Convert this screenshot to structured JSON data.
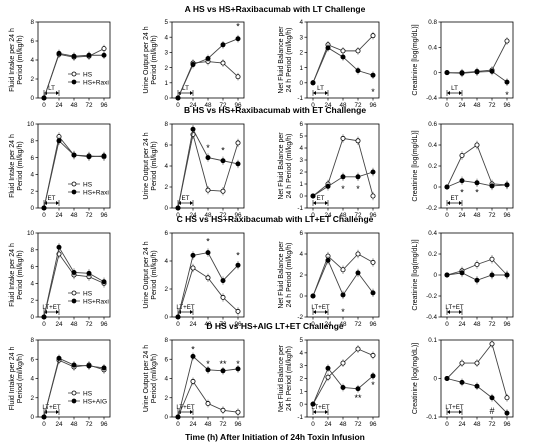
{
  "figure": {
    "xlabel": "Time (h) After Initiation of 24h Toxin Infusion",
    "x_ticks": [
      0,
      24,
      48,
      72,
      96
    ],
    "colors": {
      "hs": "#ffffff",
      "treated": "#000000",
      "line": "#444444"
    }
  },
  "chart_data": [
    {
      "row": "A",
      "title": "HS vs HS+Raxibacumab with LT Challenge",
      "toxin_label": "LT",
      "legend": [
        "HS",
        "HS+Raxi"
      ],
      "panels": [
        {
          "type": "line",
          "ylabel": [
            "Fluid Intake per 24 h",
            "Period (ml/kg/h)"
          ],
          "ylim": [
            0,
            8
          ],
          "yticks": [
            0,
            2,
            4,
            6,
            8
          ],
          "x": [
            0,
            24,
            48,
            72,
            96
          ],
          "series": [
            {
              "name": "HS",
              "values": [
                0,
                4.6,
                4.3,
                4.4,
                5.2
              ]
            },
            {
              "name": "HS+Raxi",
              "values": [
                0,
                4.7,
                4.4,
                4.5,
                4.5
              ]
            }
          ],
          "stars": []
        },
        {
          "type": "line",
          "ylabel": [
            "Urine Output per 24 h",
            "Period (ml/kg/h)"
          ],
          "ylim": [
            0,
            5
          ],
          "yticks": [
            0,
            1,
            2,
            3,
            4,
            5
          ],
          "x": [
            0,
            24,
            48,
            72,
            96
          ],
          "series": [
            {
              "name": "HS",
              "values": [
                0,
                2.3,
                2.4,
                2.3,
                1.4
              ]
            },
            {
              "name": "HS+Raxi",
              "values": [
                0,
                2.2,
                2.6,
                3.5,
                3.9
              ]
            }
          ],
          "stars": [
            {
              "x": 96,
              "y": 4.7,
              "t": "*"
            }
          ]
        },
        {
          "type": "line",
          "ylabel": [
            "Net Fluid Balance per",
            "24 h Period (ml/kg/h)"
          ],
          "ylim": [
            -1,
            4
          ],
          "yticks": [
            -1,
            0,
            1,
            2,
            3,
            4
          ],
          "x": [
            0,
            24,
            48,
            72,
            96
          ],
          "series": [
            {
              "name": "HS",
              "values": [
                0,
                2.5,
                2.1,
                2.1,
                3.1
              ]
            },
            {
              "name": "HS+Raxi",
              "values": [
                0,
                2.3,
                1.7,
                0.8,
                0.5
              ]
            }
          ],
          "stars": [
            {
              "x": 96,
              "y": -0.6,
              "t": "*"
            }
          ]
        },
        {
          "type": "line",
          "ylabel": [
            "Creatinine [log(mg/dL)]"
          ],
          "ylim": [
            -0.4,
            0.8
          ],
          "yticks": [
            -0.4,
            0,
            0.4,
            0.8
          ],
          "x": [
            0,
            24,
            48,
            72,
            96
          ],
          "series": [
            {
              "name": "HS",
              "values": [
                0,
                0,
                0.02,
                0.04,
                0.5
              ]
            },
            {
              "name": "HS+Raxi",
              "values": [
                0,
                -0.01,
                0.01,
                0.02,
                -0.15
              ]
            }
          ],
          "stars": [
            {
              "x": 96,
              "y": -0.35,
              "t": "*"
            }
          ]
        }
      ]
    },
    {
      "row": "B",
      "title": "HS vs HS+Raxibacumab with ET Challenge",
      "toxin_label": "ET",
      "legend": [
        "HS",
        "HS+Raxi"
      ],
      "panels": [
        {
          "type": "line",
          "ylabel": [
            "Fluid Intake per 24 h",
            "Period (ml/kg/h)"
          ],
          "ylim": [
            0,
            10
          ],
          "yticks": [
            0,
            2,
            4,
            6,
            8,
            10
          ],
          "x": [
            0,
            24,
            48,
            72,
            96
          ],
          "series": [
            {
              "name": "HS",
              "values": [
                0,
                8.5,
                6.3,
                6.2,
                6.1
              ]
            },
            {
              "name": "HS+Raxi",
              "values": [
                0,
                8.0,
                6.3,
                6.1,
                6.2
              ]
            }
          ],
          "stars": []
        },
        {
          "type": "line",
          "ylabel": [
            "Urine Output per 24 h",
            "Period (ml/kg/h)"
          ],
          "ylim": [
            0,
            8
          ],
          "yticks": [
            0,
            2,
            4,
            6,
            8
          ],
          "x": [
            0,
            24,
            48,
            72,
            96
          ],
          "series": [
            {
              "name": "HS",
              "values": [
                0,
                7.0,
                1.7,
                1.6,
                6.2
              ]
            },
            {
              "name": "HS+Raxi",
              "values": [
                0,
                7.5,
                4.8,
                4.5,
                4.2
              ]
            }
          ],
          "stars": [
            {
              "x": 48,
              "y": 5.7,
              "t": "*"
            },
            {
              "x": 72,
              "y": 5.5,
              "t": "*"
            }
          ]
        },
        {
          "type": "line",
          "ylabel": [
            "Net Fluid Balance per",
            "24 h Period (ml/kg/h)"
          ],
          "ylim": [
            -1,
            6
          ],
          "yticks": [
            -1,
            0,
            1,
            2,
            3,
            4,
            5,
            6
          ],
          "x": [
            0,
            24,
            48,
            72,
            96
          ],
          "series": [
            {
              "name": "HS",
              "values": [
                0,
                1.0,
                4.8,
                4.6,
                0
              ]
            },
            {
              "name": "HS+Raxi",
              "values": [
                0,
                0.8,
                1.6,
                1.6,
                2.0
              ]
            }
          ],
          "stars": [
            {
              "x": 48,
              "y": 0.6,
              "t": "*"
            },
            {
              "x": 72,
              "y": 0.6,
              "t": "*"
            }
          ]
        },
        {
          "type": "line",
          "ylabel": [
            "Creatinine [log(mg/dL)]"
          ],
          "ylim": [
            -0.2,
            0.6
          ],
          "yticks": [
            -0.2,
            0,
            0.2,
            0.4,
            0.6
          ],
          "x": [
            0,
            24,
            48,
            72,
            96
          ],
          "series": [
            {
              "name": "HS",
              "values": [
                0,
                0.3,
                0.4,
                0.03,
                0.02
              ]
            },
            {
              "name": "HS+Raxi",
              "values": [
                0,
                0.06,
                0.04,
                0.01,
                0.02
              ]
            }
          ],
          "stars": [
            {
              "x": 24,
              "y": -0.05,
              "t": "*"
            },
            {
              "x": 48,
              "y": -0.05,
              "t": "*"
            }
          ]
        }
      ]
    },
    {
      "row": "C",
      "title": "HS vs HS+Raxibacumab with LT+ET Challenge",
      "toxin_label": "LT+ET",
      "legend": [
        "HS",
        "HS+Raxi"
      ],
      "panels": [
        {
          "type": "line",
          "ylabel": [
            "Fluid Intake per 24 h",
            "Period (ml/kg/h)"
          ],
          "ylim": [
            0,
            10
          ],
          "yticks": [
            0,
            2,
            4,
            6,
            8,
            10
          ],
          "x": [
            0,
            24,
            48,
            72,
            96
          ],
          "series": [
            {
              "name": "HS",
              "values": [
                0,
                7.5,
                5.0,
                4.8,
                4.0
              ]
            },
            {
              "name": "HS+Raxi",
              "values": [
                0,
                8.3,
                5.3,
                5.2,
                4.2
              ]
            }
          ],
          "stars": []
        },
        {
          "type": "line",
          "ylabel": [
            "Urine Output per 24 h",
            "Period (ml/kg/h)"
          ],
          "ylim": [
            0,
            6
          ],
          "yticks": [
            0,
            2,
            4,
            6
          ],
          "x": [
            0,
            24,
            48,
            72,
            96
          ],
          "series": [
            {
              "name": "HS",
              "values": [
                0,
                3.5,
                2.8,
                1.4,
                0.4
              ]
            },
            {
              "name": "HS+Raxi",
              "values": [
                0,
                4.4,
                4.6,
                2.6,
                3.7
              ]
            }
          ],
          "stars": [
            {
              "x": 48,
              "y": 5.4,
              "t": "*"
            },
            {
              "x": 96,
              "y": 4.4,
              "t": "*"
            }
          ]
        },
        {
          "type": "line",
          "ylabel": [
            "Net Fluid Balance per",
            "24 h Period (ml/kg/h)"
          ],
          "ylim": [
            -2,
            6
          ],
          "yticks": [
            -2,
            0,
            2,
            4,
            6
          ],
          "x": [
            0,
            24,
            48,
            72,
            96
          ],
          "series": [
            {
              "name": "HS",
              "values": [
                0,
                3.8,
                2.5,
                4.0,
                3.2
              ]
            },
            {
              "name": "HS+Raxi",
              "values": [
                0,
                3.4,
                0.1,
                2.2,
                0.3
              ]
            }
          ],
          "stars": [
            {
              "x": 48,
              "y": -1.5,
              "t": "*"
            }
          ]
        },
        {
          "type": "line",
          "ylabel": [
            "Creatinine [log(mg/dL)]"
          ],
          "ylim": [
            -0.4,
            0.4
          ],
          "yticks": [
            -0.4,
            -0.2,
            0,
            0.2,
            0.4
          ],
          "x": [
            0,
            24,
            48,
            72,
            96
          ],
          "series": [
            {
              "name": "HS",
              "values": [
                0,
                0.04,
                0.1,
                0.15,
                0
              ]
            },
            {
              "name": "HS+Raxi",
              "values": [
                0,
                0.02,
                -0.05,
                0,
                0
              ]
            }
          ],
          "stars": []
        }
      ]
    },
    {
      "row": "D",
      "title": "HS vs HS+AIG LT+ET Challenge",
      "toxin_label": "LT+ET",
      "legend": [
        "HS",
        "HS+AIG"
      ],
      "panels": [
        {
          "type": "line",
          "ylabel": [
            "Fluid Intake per 24 h",
            "Period (ml/kg/h)"
          ],
          "ylim": [
            0,
            8
          ],
          "yticks": [
            0,
            2,
            4,
            6,
            8
          ],
          "x": [
            0,
            24,
            48,
            72,
            96
          ],
          "series": [
            {
              "name": "HS",
              "values": [
                0,
                5.9,
                5.2,
                5.4,
                4.9
              ]
            },
            {
              "name": "HS+AIG",
              "values": [
                0,
                6.1,
                5.4,
                5.3,
                5.1
              ]
            }
          ],
          "stars": []
        },
        {
          "type": "line",
          "ylabel": [
            "Urine Output per 24 h",
            "Period (ml/kg/h)"
          ],
          "ylim": [
            0,
            8
          ],
          "yticks": [
            0,
            2,
            4,
            6,
            8
          ],
          "x": [
            0,
            24,
            48,
            72,
            96
          ],
          "series": [
            {
              "name": "HS",
              "values": [
                0,
                3.7,
                1.4,
                0.7,
                0.5
              ]
            },
            {
              "name": "HS+AIG",
              "values": [
                0,
                6.3,
                4.9,
                4.8,
                5.0
              ]
            }
          ],
          "stars": [
            {
              "x": 24,
              "y": 7.0,
              "t": "*"
            },
            {
              "x": 48,
              "y": 5.5,
              "t": "*"
            },
            {
              "x": 72,
              "y": 5.5,
              "t": "**"
            },
            {
              "x": 96,
              "y": 5.5,
              "t": "*"
            }
          ]
        },
        {
          "type": "line",
          "ylabel": [
            "Net Fluid Balance per",
            "24 h Period (ml/kg/h)"
          ],
          "ylim": [
            -1,
            5
          ],
          "yticks": [
            -1,
            0,
            1,
            2,
            3,
            4,
            5
          ],
          "x": [
            0,
            24,
            48,
            72,
            96
          ],
          "series": [
            {
              "name": "HS",
              "values": [
                0,
                2.1,
                3.2,
                4.3,
                3.8
              ]
            },
            {
              "name": "HS+AIG",
              "values": [
                0,
                2.8,
                1.3,
                1.2,
                2.2
              ]
            }
          ],
          "stars": [
            {
              "x": 72,
              "y": 0.5,
              "t": "**"
            },
            {
              "x": 96,
              "y": 1.5,
              "t": "*"
            }
          ]
        },
        {
          "type": "line",
          "ylabel": [
            "Creatinine [log(mg/dL)]"
          ],
          "ylim": [
            -0.1,
            0.1
          ],
          "yticks": [
            -0.1,
            0,
            0.1
          ],
          "x": [
            0,
            24,
            48,
            72,
            96
          ],
          "series": [
            {
              "name": "HS",
              "values": [
                0,
                0.04,
                0.04,
                0.09,
                -0.05
              ]
            },
            {
              "name": "HS+AIG",
              "values": [
                0,
                -0.01,
                -0.02,
                -0.05,
                -0.09
              ]
            }
          ],
          "stars": [
            {
              "x": 72,
              "y": -0.085,
              "t": "#"
            }
          ]
        }
      ]
    }
  ]
}
